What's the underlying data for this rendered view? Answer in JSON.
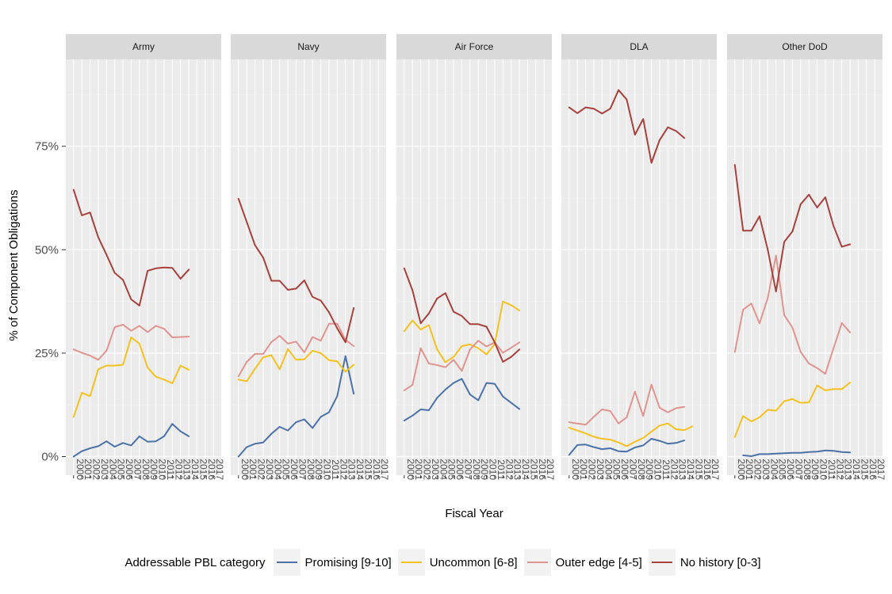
{
  "chart_data": {
    "type": "line",
    "xlabel": "Fiscal Year",
    "ylabel": "% of Component Obligations",
    "ylim": [
      -0.045,
      0.96
    ],
    "yticks": [
      0,
      0.25,
      0.5,
      0.75
    ],
    "ytick_labels": [
      "0%",
      "25%",
      "50%",
      "75%"
    ],
    "xtick_labels": [
      "2000",
      "2001",
      "2002",
      "2003",
      "2004",
      "2005",
      "2006",
      "2007",
      "2008",
      "2009",
      "2010",
      "2011",
      "2012",
      "2013",
      "2014",
      "2015",
      "2016",
      "2017"
    ],
    "grid": true,
    "legend_position": "bottom",
    "legend_title": "Addressable PBL category",
    "series_meta": [
      {
        "name": "Promising [9-10]",
        "color": "#4a72a8"
      },
      {
        "name": "Uncommon [6-8]",
        "color": "#f6c11e"
      },
      {
        "name": "Outer edge [4-5]",
        "color": "#e0948f"
      },
      {
        "name": "No history [0-3]",
        "color": "#a8403c"
      }
    ],
    "panels": [
      {
        "title": "Army",
        "series": [
          {
            "name": "Promising [9-10]",
            "values": [
              0.0,
              0.013,
              0.02,
              0.025,
              0.037,
              0.024,
              0.033,
              0.027,
              0.049,
              0.036,
              0.037,
              0.049,
              0.079,
              0.061,
              0.049,
              null,
              null,
              null
            ]
          },
          {
            "name": "Uncommon [6-8]",
            "values": [
              0.096,
              0.154,
              0.146,
              0.211,
              0.22,
              0.22,
              0.222,
              0.288,
              0.273,
              0.215,
              0.193,
              0.186,
              0.177,
              0.22,
              0.21,
              null,
              null,
              null
            ]
          },
          {
            "name": "Outer edge [4-5]",
            "values": [
              0.259,
              0.251,
              0.244,
              0.234,
              0.256,
              0.313,
              0.319,
              0.304,
              0.316,
              0.301,
              0.316,
              0.309,
              0.288,
              0.289,
              0.29,
              null,
              null,
              null
            ]
          },
          {
            "name": "No history [0-3]",
            "values": [
              0.645,
              0.583,
              0.59,
              0.53,
              0.488,
              0.444,
              0.427,
              0.38,
              0.365,
              0.449,
              0.455,
              0.457,
              0.456,
              0.43,
              0.452,
              null,
              null,
              null
            ]
          }
        ]
      },
      {
        "title": "Navy",
        "series": [
          {
            "name": "Promising [9-10]",
            "values": [
              0.0,
              0.023,
              0.031,
              0.034,
              0.055,
              0.072,
              0.063,
              0.083,
              0.09,
              0.069,
              0.096,
              0.107,
              0.146,
              0.243,
              0.152,
              null,
              null,
              null
            ]
          },
          {
            "name": "Uncommon [6-8]",
            "values": [
              0.186,
              0.182,
              0.212,
              0.24,
              0.245,
              0.211,
              0.26,
              0.234,
              0.235,
              0.256,
              0.25,
              0.233,
              0.23,
              0.205,
              0.222,
              null,
              null,
              null
            ]
          },
          {
            "name": "Outer edge [4-5]",
            "values": [
              0.194,
              0.229,
              0.248,
              0.248,
              0.277,
              0.292,
              0.273,
              0.278,
              0.252,
              0.289,
              0.28,
              0.321,
              0.321,
              0.282,
              0.267,
              null,
              null,
              null
            ]
          },
          {
            "name": "No history [0-3]",
            "values": [
              0.623,
              0.567,
              0.511,
              0.481,
              0.425,
              0.425,
              0.403,
              0.406,
              0.426,
              0.386,
              0.377,
              0.349,
              0.31,
              0.276,
              0.359,
              null,
              null,
              null
            ]
          }
        ]
      },
      {
        "title": "Air Force",
        "series": [
          {
            "name": "Promising [9-10]",
            "values": [
              0.087,
              0.099,
              0.114,
              0.112,
              0.142,
              0.162,
              0.178,
              0.188,
              0.15,
              0.136,
              0.178,
              0.176,
              0.145,
              0.13,
              0.115,
              null,
              null,
              null
            ]
          },
          {
            "name": "Uncommon [6-8]",
            "values": [
              0.303,
              0.329,
              0.307,
              0.318,
              0.259,
              0.228,
              0.241,
              0.267,
              0.271,
              0.262,
              0.247,
              0.272,
              0.375,
              0.366,
              0.353,
              null,
              null,
              null
            ]
          },
          {
            "name": "Outer edge [4-5]",
            "values": [
              0.16,
              0.173,
              0.262,
              0.225,
              0.221,
              0.216,
              0.234,
              0.207,
              0.259,
              0.28,
              0.266,
              0.276,
              0.251,
              0.263,
              0.276,
              null,
              null,
              null
            ]
          },
          {
            "name": "No history [0-3]",
            "values": [
              0.455,
              0.402,
              0.322,
              0.346,
              0.382,
              0.395,
              0.35,
              0.34,
              0.32,
              0.32,
              0.314,
              0.276,
              0.229,
              0.241,
              0.259,
              null,
              null,
              null
            ]
          }
        ]
      },
      {
        "title": "DLA",
        "series": [
          {
            "name": "Promising [9-10]",
            "values": [
              0.004,
              0.028,
              0.029,
              0.023,
              0.018,
              0.02,
              0.013,
              0.012,
              0.022,
              0.027,
              0.043,
              0.038,
              0.031,
              0.033,
              0.039,
              null,
              null,
              null
            ]
          },
          {
            "name": "Uncommon [6-8]",
            "values": [
              0.07,
              0.063,
              0.056,
              0.048,
              0.043,
              0.041,
              0.034,
              0.025,
              0.036,
              0.045,
              0.06,
              0.075,
              0.08,
              0.066,
              0.064,
              0.073,
              null,
              null
            ]
          },
          {
            "name": "Outer edge [4-5]",
            "values": [
              0.083,
              0.08,
              0.077,
              0.096,
              0.114,
              0.11,
              0.08,
              0.095,
              0.157,
              0.098,
              0.174,
              0.118,
              0.107,
              0.117,
              0.12,
              null,
              null,
              null
            ]
          },
          {
            "name": "No history [0-3]",
            "values": [
              0.844,
              0.83,
              0.844,
              0.841,
              0.829,
              0.841,
              0.886,
              0.863,
              0.778,
              0.816,
              0.71,
              0.765,
              0.796,
              0.787,
              0.77,
              null,
              null,
              null
            ]
          }
        ]
      },
      {
        "title": "Other DoD",
        "series": [
          {
            "name": "Promising [9-10]",
            "values": [
              null,
              0.003,
              0.001,
              0.006,
              0.006,
              0.007,
              0.008,
              0.009,
              0.009,
              0.011,
              0.012,
              0.015,
              0.014,
              0.011,
              0.01,
              null,
              null,
              null
            ]
          },
          {
            "name": "Uncommon [6-8]",
            "values": [
              0.047,
              0.098,
              0.085,
              0.095,
              0.113,
              0.111,
              0.134,
              0.139,
              0.13,
              0.131,
              0.172,
              0.16,
              0.163,
              0.163,
              0.179,
              null,
              null,
              null
            ]
          },
          {
            "name": "Outer edge [4-5]",
            "values": [
              0.253,
              0.355,
              0.37,
              0.322,
              0.383,
              0.486,
              0.342,
              0.312,
              0.253,
              0.225,
              0.214,
              0.2,
              0.262,
              0.323,
              0.3,
              null,
              null,
              null
            ]
          },
          {
            "name": "No history [0-3]",
            "values": [
              0.705,
              0.546,
              0.546,
              0.581,
              0.5,
              0.399,
              0.519,
              0.544,
              0.61,
              0.633,
              0.602,
              0.627,
              0.557,
              0.507,
              0.513,
              null,
              null,
              null
            ]
          }
        ]
      }
    ]
  }
}
